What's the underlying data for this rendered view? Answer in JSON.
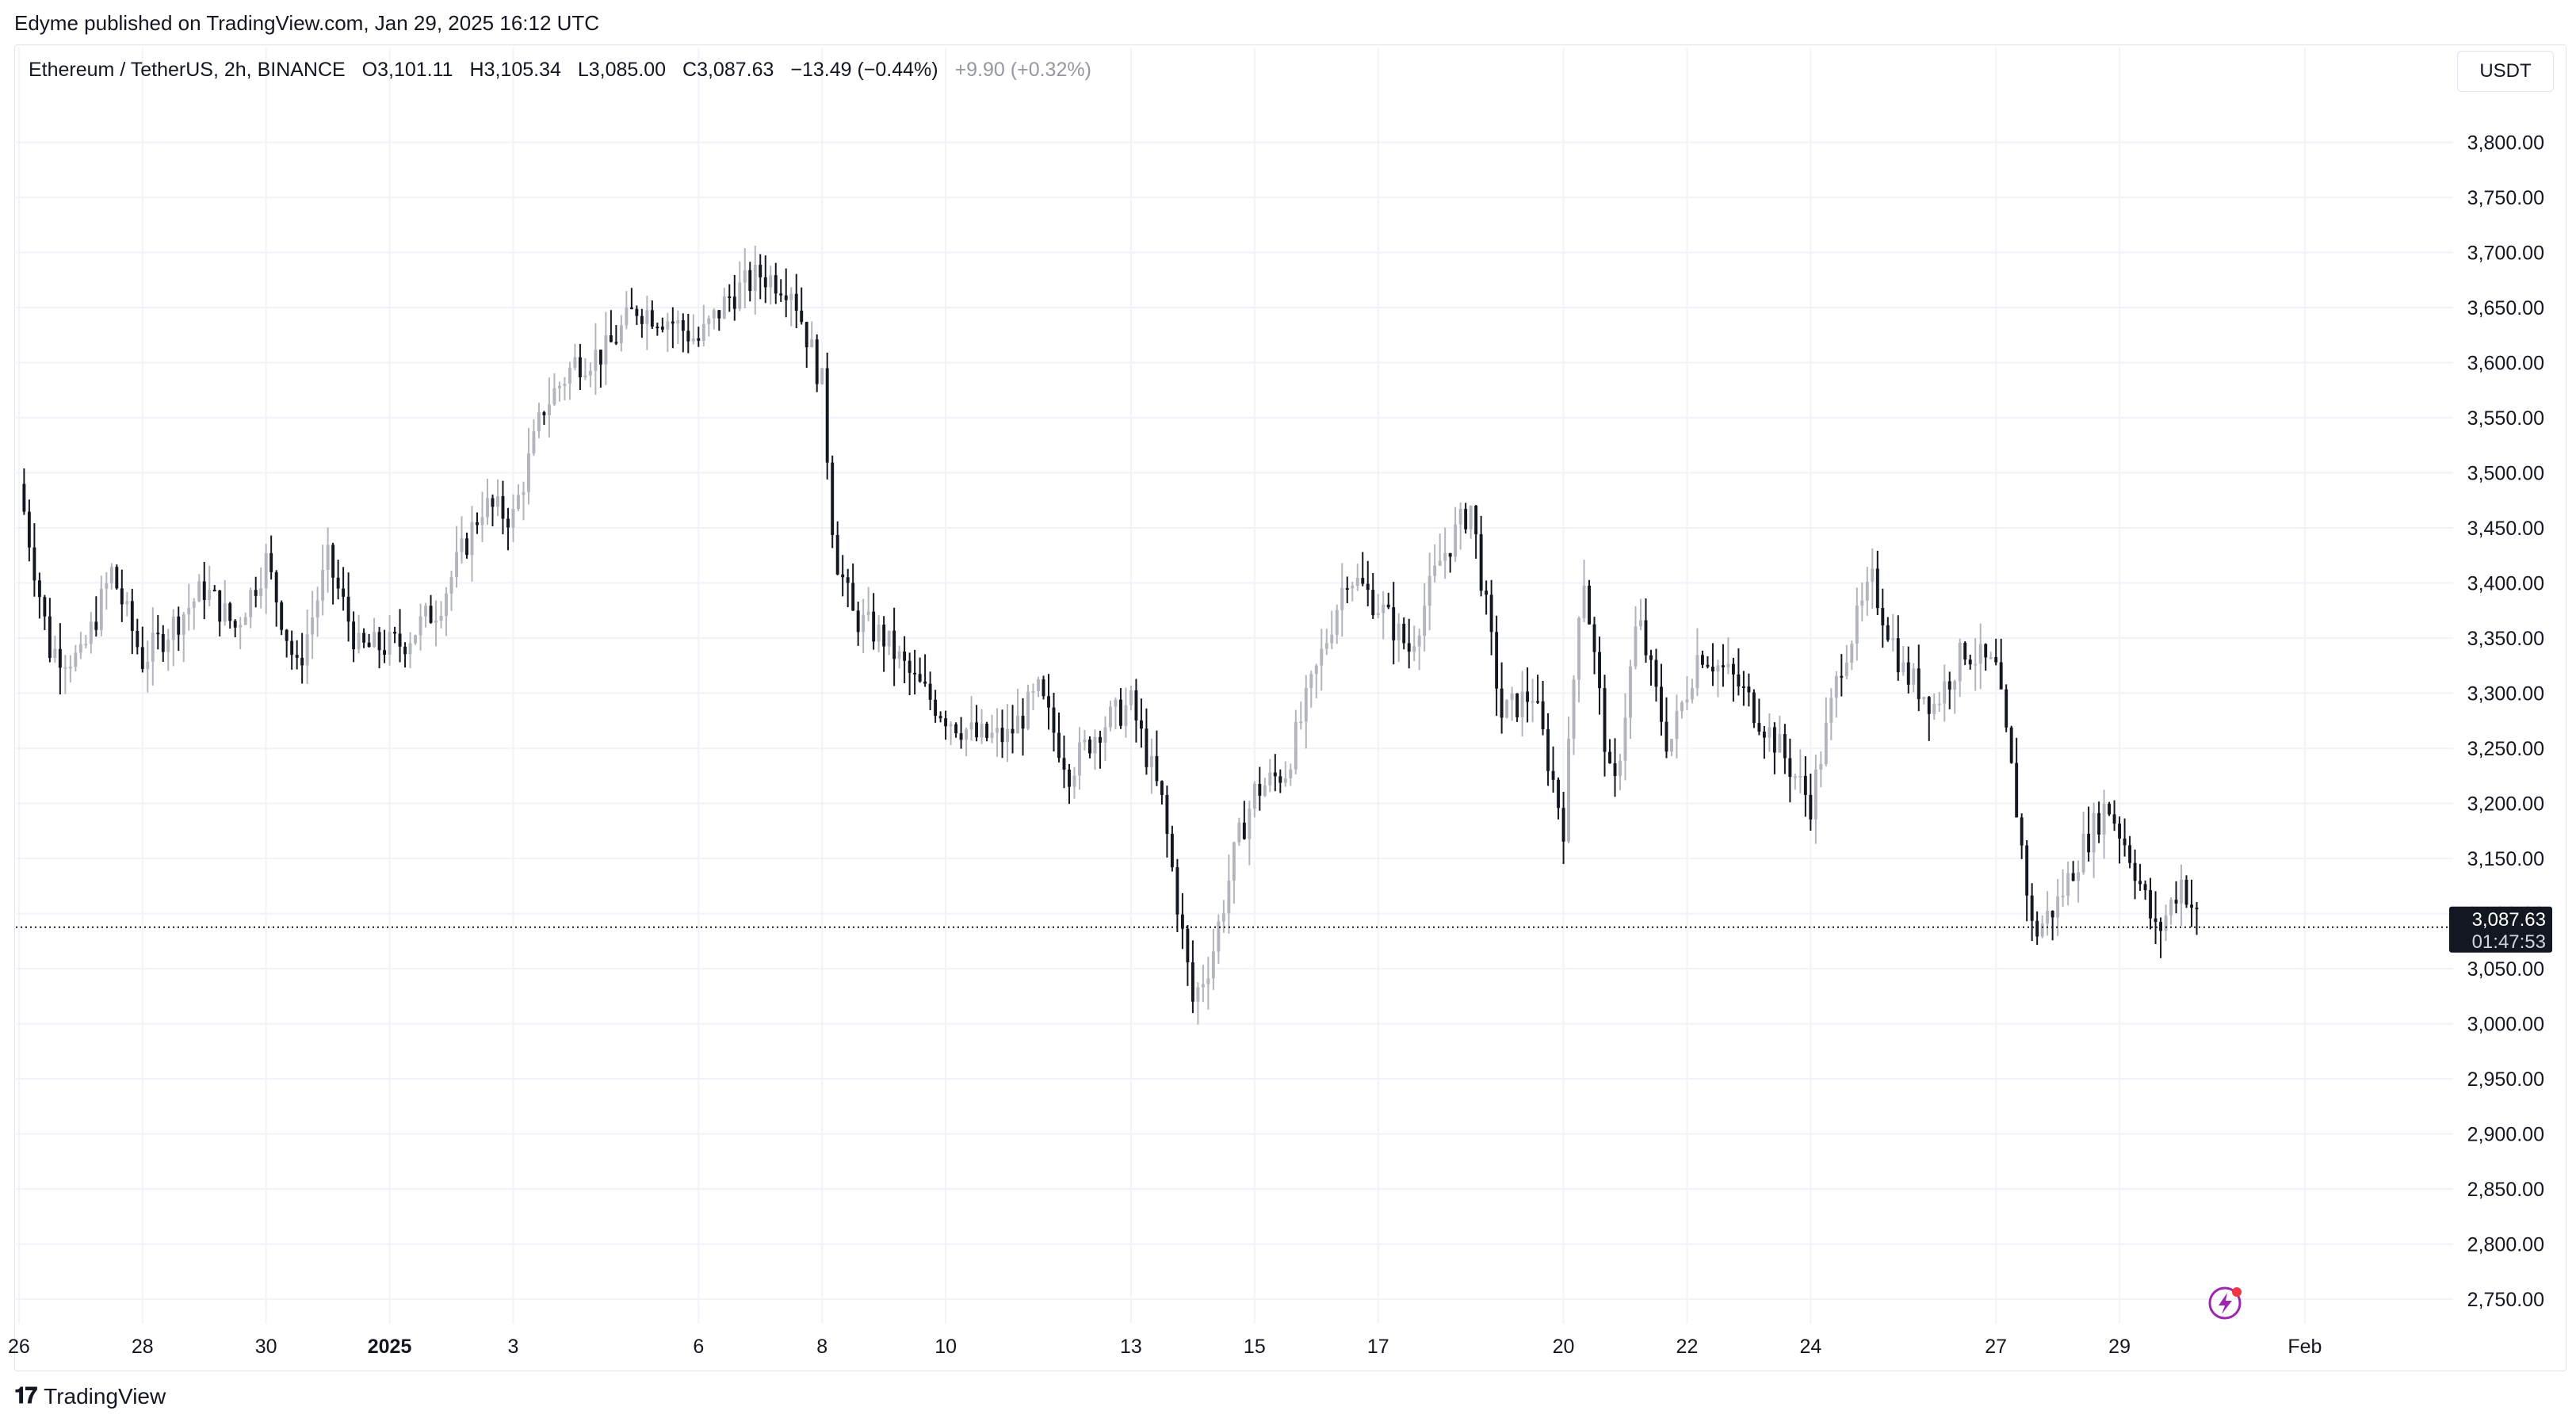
{
  "header": {
    "published_by": "Edyme published on TradingView.com, Jan 29, 2025 16:12 UTC"
  },
  "legend": {
    "symbol": "Ethereum / TetherUS, 2h, BINANCE",
    "open": "O3,101.11",
    "high": "H3,105.34",
    "low": "L3,085.00",
    "close": "C3,087.63",
    "change": "−13.49 (−0.44%)",
    "extra": "+9.90 (+0.32%)"
  },
  "currency_label": "USDT",
  "price_tag": {
    "price": "3,087.63",
    "countdown": "01:47:53"
  },
  "footer": {
    "logo_text": "TradingView"
  },
  "colors": {
    "up_candle": "#b2b5be",
    "down_candle": "#131722",
    "grid": "#f0f3fa",
    "price_tag_bg": "#131722",
    "lightning_icon": "#9c27b0",
    "notification_dot": "#f23645"
  },
  "icons": {
    "lightning": "lightning-icon"
  },
  "chart_data": {
    "type": "candlestick",
    "title": "Ethereum / TetherUS, 2h, BINANCE",
    "ylabel": "USDT",
    "ylim": [
      2735,
      3850
    ],
    "y_ticks": [
      "3,800.00",
      "3,750.00",
      "3,700.00",
      "3,650.00",
      "3,600.00",
      "3,550.00",
      "3,500.00",
      "3,450.00",
      "3,400.00",
      "3,350.00",
      "3,300.00",
      "3,250.00",
      "3,200.00",
      "3,150.00",
      "3,100.00",
      "3,050.00",
      "3,000.00",
      "2,950.00",
      "2,900.00",
      "2,850.00",
      "2,800.00",
      "2,750.00"
    ],
    "x_ticks": [
      "26",
      "28",
      "30",
      "2025",
      "3",
      "6",
      "8",
      "10",
      "13",
      "15",
      "17",
      "20",
      "22",
      "24",
      "27",
      "29",
      "Feb"
    ],
    "x_tick_days": [
      -6,
      -4,
      -2,
      0,
      2,
      5,
      7,
      9,
      12,
      14,
      16,
      19,
      21,
      23,
      26,
      28,
      31
    ],
    "x_range_days": [
      -6.05,
      33.4
    ],
    "last_price": 3087.63,
    "candle_interval": "2h",
    "approx_close_path": [
      {
        "day": -6.0,
        "close": 3490
      },
      {
        "day": -5.5,
        "close": 3340
      },
      {
        "day": -5.0,
        "close": 3330
      },
      {
        "day": -4.5,
        "close": 3410
      },
      {
        "day": -4.0,
        "close": 3330
      },
      {
        "day": -3.0,
        "close": 3395
      },
      {
        "day": -2.5,
        "close": 3360
      },
      {
        "day": -2.0,
        "close": 3420
      },
      {
        "day": -1.5,
        "close": 3320
      },
      {
        "day": -1.0,
        "close": 3420
      },
      {
        "day": -0.5,
        "close": 3340
      },
      {
        "day": 0.2,
        "close": 3345
      },
      {
        "day": 0.8,
        "close": 3380
      },
      {
        "day": 1.5,
        "close": 3470
      },
      {
        "day": 2.0,
        "close": 3460
      },
      {
        "day": 2.5,
        "close": 3560
      },
      {
        "day": 3.0,
        "close": 3600
      },
      {
        "day": 3.5,
        "close": 3610
      },
      {
        "day": 4.0,
        "close": 3650
      },
      {
        "day": 4.5,
        "close": 3640
      },
      {
        "day": 5.0,
        "close": 3620
      },
      {
        "day": 5.5,
        "close": 3660
      },
      {
        "day": 6.0,
        "close": 3680
      },
      {
        "day": 6.5,
        "close": 3670
      },
      {
        "day": 7.0,
        "close": 3580
      },
      {
        "day": 7.2,
        "close": 3430
      },
      {
        "day": 7.5,
        "close": 3370
      },
      {
        "day": 8.0,
        "close": 3350
      },
      {
        "day": 8.5,
        "close": 3310
      },
      {
        "day": 9.0,
        "close": 3280
      },
      {
        "day": 9.5,
        "close": 3260
      },
      {
        "day": 10.0,
        "close": 3260
      },
      {
        "day": 10.5,
        "close": 3300
      },
      {
        "day": 11.0,
        "close": 3230
      },
      {
        "day": 11.5,
        "close": 3270
      },
      {
        "day": 12.0,
        "close": 3290
      },
      {
        "day": 12.5,
        "close": 3200
      },
      {
        "day": 13.0,
        "close": 3020
      },
      {
        "day": 13.3,
        "close": 3060
      },
      {
        "day": 13.7,
        "close": 3160
      },
      {
        "day": 14.0,
        "close": 3210
      },
      {
        "day": 14.5,
        "close": 3230
      },
      {
        "day": 15.0,
        "close": 3320
      },
      {
        "day": 15.5,
        "close": 3410
      },
      {
        "day": 16.0,
        "close": 3380
      },
      {
        "day": 16.5,
        "close": 3340
      },
      {
        "day": 17.0,
        "close": 3420
      },
      {
        "day": 17.5,
        "close": 3470
      },
      {
        "day": 18.0,
        "close": 3280
      },
      {
        "day": 18.5,
        "close": 3300
      },
      {
        "day": 19.0,
        "close": 3180
      },
      {
        "day": 19.3,
        "close": 3420
      },
      {
        "day": 19.8,
        "close": 3200
      },
      {
        "day": 20.2,
        "close": 3370
      },
      {
        "day": 20.7,
        "close": 3250
      },
      {
        "day": 21.2,
        "close": 3340
      },
      {
        "day": 21.8,
        "close": 3310
      },
      {
        "day": 22.5,
        "close": 3250
      },
      {
        "day": 23.0,
        "close": 3200
      },
      {
        "day": 23.5,
        "close": 3330
      },
      {
        "day": 24.0,
        "close": 3400
      },
      {
        "day": 24.5,
        "close": 3320
      },
      {
        "day": 25.0,
        "close": 3290
      },
      {
        "day": 25.5,
        "close": 3340
      },
      {
        "day": 26.0,
        "close": 3320
      },
      {
        "day": 26.3,
        "close": 3210
      },
      {
        "day": 26.6,
        "close": 3080
      },
      {
        "day": 27.0,
        "close": 3110
      },
      {
        "day": 27.4,
        "close": 3160
      },
      {
        "day": 27.8,
        "close": 3200
      },
      {
        "day": 28.2,
        "close": 3150
      },
      {
        "day": 28.6,
        "close": 3080
      },
      {
        "day": 29.0,
        "close": 3130
      },
      {
        "day": 29.3,
        "close": 3090
      }
    ]
  }
}
